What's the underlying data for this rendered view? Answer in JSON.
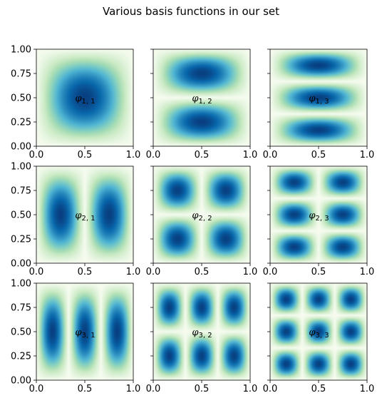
{
  "figure": {
    "title": "Various basis functions in our set"
  },
  "chart_data": {
    "type": "heatmap",
    "colormap": "GnBu",
    "colormap_stops": [
      "#f7fcf0",
      "#e0f3db",
      "#ccebc5",
      "#a8ddb5",
      "#7bccc4",
      "#4eb3d3",
      "#2b8cbe",
      "#0868ac",
      "#084081"
    ],
    "function": "-|sin(i*pi*x) * sin(j*pi*y)|",
    "xlim": [
      0.0,
      1.0
    ],
    "ylim": [
      0.0,
      1.0
    ],
    "xticks": [
      "0.0",
      "0.5",
      "1.0"
    ],
    "yticks": [
      "0.00",
      "0.25",
      "0.50",
      "0.75",
      "1.00"
    ],
    "panels": [
      {
        "i": 1,
        "j": 1,
        "label": "φ",
        "subscript": "1, 1"
      },
      {
        "i": 1,
        "j": 2,
        "label": "φ",
        "subscript": "1, 2"
      },
      {
        "i": 1,
        "j": 3,
        "label": "φ",
        "subscript": "1, 3"
      },
      {
        "i": 2,
        "j": 1,
        "label": "φ",
        "subscript": "2, 1"
      },
      {
        "i": 2,
        "j": 2,
        "label": "φ",
        "subscript": "2, 2"
      },
      {
        "i": 2,
        "j": 3,
        "label": "φ",
        "subscript": "2, 3"
      },
      {
        "i": 3,
        "j": 1,
        "label": "φ",
        "subscript": "3, 1"
      },
      {
        "i": 3,
        "j": 2,
        "label": "φ",
        "subscript": "3, 2"
      },
      {
        "i": 3,
        "j": 3,
        "label": "φ",
        "subscript": "3, 3"
      }
    ]
  }
}
